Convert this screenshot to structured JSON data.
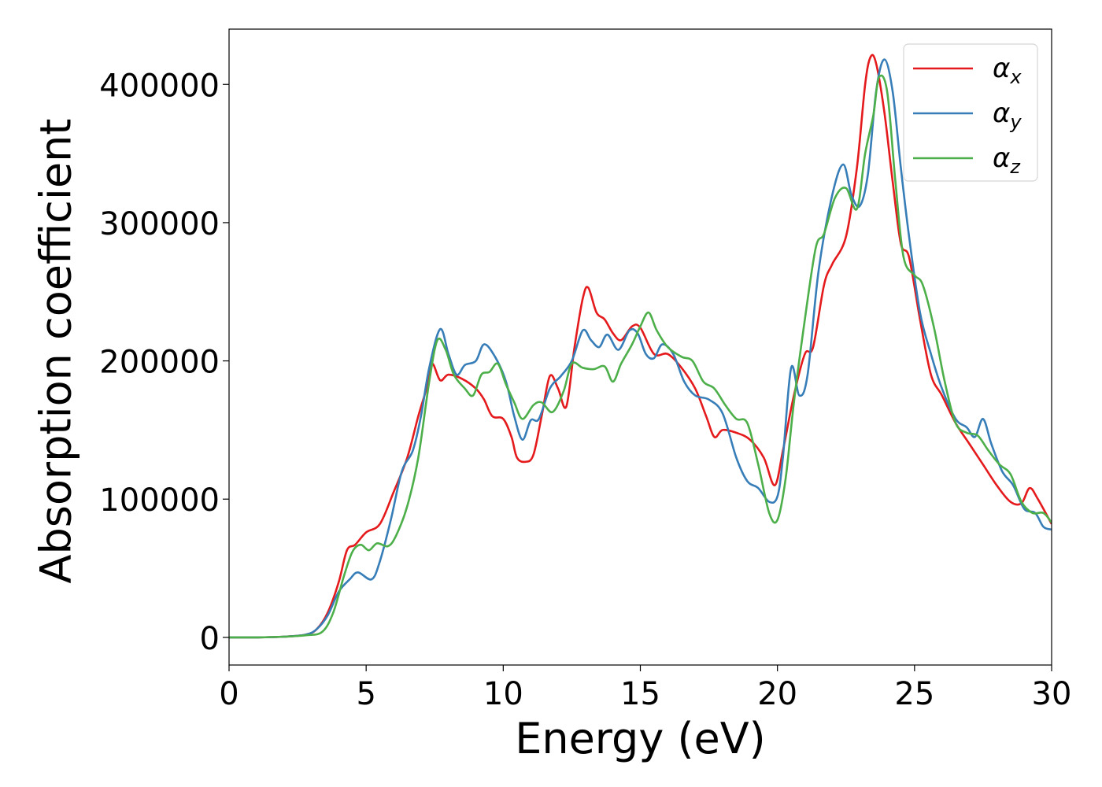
{
  "chart_data": {
    "type": "line",
    "title": "",
    "xlabel": "Energy (eV)",
    "ylabel": "Absorption coefficient",
    "xlim": [
      0,
      30
    ],
    "ylim": [
      -20000,
      440000
    ],
    "xticks": [
      0,
      5,
      10,
      15,
      20,
      25,
      30
    ],
    "yticks": [
      0,
      100000,
      200000,
      300000,
      400000
    ],
    "grid": false,
    "legend_position": "top-right",
    "series": [
      {
        "name": "α",
        "subscript": "x",
        "color": "#e41a1c",
        "points": [
          [
            0,
            0
          ],
          [
            1,
            0
          ],
          [
            2,
            500
          ],
          [
            2.8,
            2000
          ],
          [
            3.2,
            6000
          ],
          [
            3.6,
            18000
          ],
          [
            4,
            40000
          ],
          [
            4.3,
            63000
          ],
          [
            4.6,
            67000
          ],
          [
            5,
            76000
          ],
          [
            5.5,
            82000
          ],
          [
            6,
            105000
          ],
          [
            6.5,
            130000
          ],
          [
            6.9,
            160000
          ],
          [
            7.2,
            180000
          ],
          [
            7.4,
            198000
          ],
          [
            7.7,
            186000
          ],
          [
            8,
            190000
          ],
          [
            8.5,
            187000
          ],
          [
            9,
            180000
          ],
          [
            9.3,
            172000
          ],
          [
            9.6,
            160000
          ],
          [
            10,
            158000
          ],
          [
            10.3,
            145000
          ],
          [
            10.5,
            130000
          ],
          [
            10.8,
            127000
          ],
          [
            11.1,
            132000
          ],
          [
            11.4,
            160000
          ],
          [
            11.7,
            189000
          ],
          [
            12,
            180000
          ],
          [
            12.3,
            167000
          ],
          [
            12.6,
            210000
          ],
          [
            12.9,
            245000
          ],
          [
            13.1,
            253000
          ],
          [
            13.4,
            235000
          ],
          [
            13.7,
            230000
          ],
          [
            14,
            220000
          ],
          [
            14.3,
            215000
          ],
          [
            14.7,
            225000
          ],
          [
            15,
            224000
          ],
          [
            15.5,
            205000
          ],
          [
            16,
            205000
          ],
          [
            16.5,
            195000
          ],
          [
            17,
            180000
          ],
          [
            17.4,
            160000
          ],
          [
            17.7,
            145000
          ],
          [
            18,
            150000
          ],
          [
            18.5,
            148000
          ],
          [
            19,
            143000
          ],
          [
            19.5,
            130000
          ],
          [
            19.9,
            110000
          ],
          [
            20.2,
            135000
          ],
          [
            20.6,
            175000
          ],
          [
            21,
            205000
          ],
          [
            21.3,
            210000
          ],
          [
            21.7,
            255000
          ],
          [
            22,
            270000
          ],
          [
            22.5,
            290000
          ],
          [
            22.9,
            340000
          ],
          [
            23.2,
            400000
          ],
          [
            23.4,
            420000
          ],
          [
            23.6,
            415000
          ],
          [
            23.9,
            380000
          ],
          [
            24.2,
            330000
          ],
          [
            24.5,
            285000
          ],
          [
            24.8,
            275000
          ],
          [
            25.2,
            230000
          ],
          [
            25.6,
            190000
          ],
          [
            26,
            175000
          ],
          [
            26.5,
            155000
          ],
          [
            27,
            140000
          ],
          [
            27.5,
            125000
          ],
          [
            28,
            110000
          ],
          [
            28.5,
            98000
          ],
          [
            28.9,
            97000
          ],
          [
            29.2,
            108000
          ],
          [
            29.5,
            100000
          ],
          [
            30,
            82000
          ]
        ]
      },
      {
        "name": "α",
        "subscript": "y",
        "color": "#377eb8",
        "points": [
          [
            0,
            0
          ],
          [
            1,
            0
          ],
          [
            2,
            500
          ],
          [
            2.8,
            2000
          ],
          [
            3.2,
            6000
          ],
          [
            3.6,
            16000
          ],
          [
            4,
            33000
          ],
          [
            4.4,
            42000
          ],
          [
            4.7,
            47000
          ],
          [
            5.2,
            42000
          ],
          [
            5.5,
            55000
          ],
          [
            5.9,
            85000
          ],
          [
            6.3,
            120000
          ],
          [
            6.7,
            135000
          ],
          [
            7,
            160000
          ],
          [
            7.3,
            195000
          ],
          [
            7.7,
            223000
          ],
          [
            8,
            205000
          ],
          [
            8.3,
            190000
          ],
          [
            8.6,
            197000
          ],
          [
            9,
            200000
          ],
          [
            9.3,
            212000
          ],
          [
            9.7,
            203000
          ],
          [
            10.1,
            185000
          ],
          [
            10.4,
            160000
          ],
          [
            10.7,
            143000
          ],
          [
            11,
            157000
          ],
          [
            11.3,
            158000
          ],
          [
            11.7,
            180000
          ],
          [
            12.1,
            189000
          ],
          [
            12.5,
            200000
          ],
          [
            12.9,
            222000
          ],
          [
            13.2,
            215000
          ],
          [
            13.5,
            210000
          ],
          [
            13.8,
            219000
          ],
          [
            14.2,
            208000
          ],
          [
            14.6,
            222000
          ],
          [
            14.9,
            220000
          ],
          [
            15.2,
            205000
          ],
          [
            15.5,
            202000
          ],
          [
            15.8,
            212000
          ],
          [
            16.2,
            205000
          ],
          [
            16.6,
            185000
          ],
          [
            17,
            175000
          ],
          [
            17.5,
            172000
          ],
          [
            18,
            162000
          ],
          [
            18.5,
            130000
          ],
          [
            18.9,
            113000
          ],
          [
            19.3,
            108000
          ],
          [
            19.7,
            98000
          ],
          [
            20,
            102000
          ],
          [
            20.2,
            130000
          ],
          [
            20.5,
            195000
          ],
          [
            20.8,
            175000
          ],
          [
            21.1,
            190000
          ],
          [
            21.5,
            265000
          ],
          [
            22,
            320000
          ],
          [
            22.4,
            342000
          ],
          [
            22.7,
            320000
          ],
          [
            23,
            312000
          ],
          [
            23.3,
            335000
          ],
          [
            23.6,
            395000
          ],
          [
            23.9,
            418000
          ],
          [
            24.2,
            395000
          ],
          [
            24.5,
            340000
          ],
          [
            24.8,
            290000
          ],
          [
            25.2,
            235000
          ],
          [
            25.6,
            205000
          ],
          [
            26,
            180000
          ],
          [
            26.5,
            158000
          ],
          [
            26.9,
            152000
          ],
          [
            27.2,
            145000
          ],
          [
            27.5,
            158000
          ],
          [
            27.8,
            140000
          ],
          [
            28.2,
            120000
          ],
          [
            28.6,
            110000
          ],
          [
            29,
            93000
          ],
          [
            29.4,
            90000
          ],
          [
            29.7,
            80000
          ],
          [
            30,
            78000
          ]
        ]
      },
      {
        "name": "α",
        "subscript": "z",
        "color": "#4daf4a",
        "points": [
          [
            0,
            0
          ],
          [
            1,
            0
          ],
          [
            2,
            500
          ],
          [
            2.8,
            1500
          ],
          [
            3.4,
            4000
          ],
          [
            3.8,
            18000
          ],
          [
            4.2,
            45000
          ],
          [
            4.5,
            62000
          ],
          [
            4.8,
            67000
          ],
          [
            5.1,
            63000
          ],
          [
            5.4,
            68000
          ],
          [
            5.8,
            66000
          ],
          [
            6.1,
            74000
          ],
          [
            6.5,
            95000
          ],
          [
            6.9,
            130000
          ],
          [
            7.3,
            185000
          ],
          [
            7.6,
            215000
          ],
          [
            7.9,
            208000
          ],
          [
            8.2,
            190000
          ],
          [
            8.6,
            180000
          ],
          [
            8.9,
            175000
          ],
          [
            9.2,
            190000
          ],
          [
            9.5,
            192000
          ],
          [
            9.8,
            198000
          ],
          [
            10.1,
            183000
          ],
          [
            10.4,
            170000
          ],
          [
            10.7,
            158000
          ],
          [
            11.1,
            168000
          ],
          [
            11.4,
            170000
          ],
          [
            11.8,
            163000
          ],
          [
            12.2,
            178000
          ],
          [
            12.5,
            198000
          ],
          [
            12.9,
            195000
          ],
          [
            13.3,
            194000
          ],
          [
            13.7,
            196000
          ],
          [
            14,
            185000
          ],
          [
            14.3,
            198000
          ],
          [
            14.7,
            212000
          ],
          [
            15,
            225000
          ],
          [
            15.3,
            235000
          ],
          [
            15.6,
            222000
          ],
          [
            16,
            210000
          ],
          [
            16.5,
            203000
          ],
          [
            16.9,
            200000
          ],
          [
            17.3,
            185000
          ],
          [
            17.7,
            180000
          ],
          [
            18.1,
            168000
          ],
          [
            18.5,
            158000
          ],
          [
            18.9,
            155000
          ],
          [
            19.3,
            125000
          ],
          [
            19.7,
            90000
          ],
          [
            20,
            85000
          ],
          [
            20.3,
            115000
          ],
          [
            20.6,
            170000
          ],
          [
            21,
            230000
          ],
          [
            21.4,
            282000
          ],
          [
            21.7,
            292000
          ],
          [
            22.1,
            318000
          ],
          [
            22.5,
            325000
          ],
          [
            22.9,
            310000
          ],
          [
            23.2,
            350000
          ],
          [
            23.5,
            378000
          ],
          [
            23.7,
            405000
          ],
          [
            24,
            395000
          ],
          [
            24.3,
            330000
          ],
          [
            24.6,
            275000
          ],
          [
            25,
            262000
          ],
          [
            25.3,
            255000
          ],
          [
            25.7,
            225000
          ],
          [
            26.1,
            185000
          ],
          [
            26.5,
            155000
          ],
          [
            26.9,
            148000
          ],
          [
            27.3,
            146000
          ],
          [
            27.7,
            135000
          ],
          [
            28.1,
            125000
          ],
          [
            28.5,
            118000
          ],
          [
            28.9,
            98000
          ],
          [
            29.3,
            90000
          ],
          [
            29.7,
            90000
          ],
          [
            30,
            83000
          ]
        ]
      }
    ]
  }
}
